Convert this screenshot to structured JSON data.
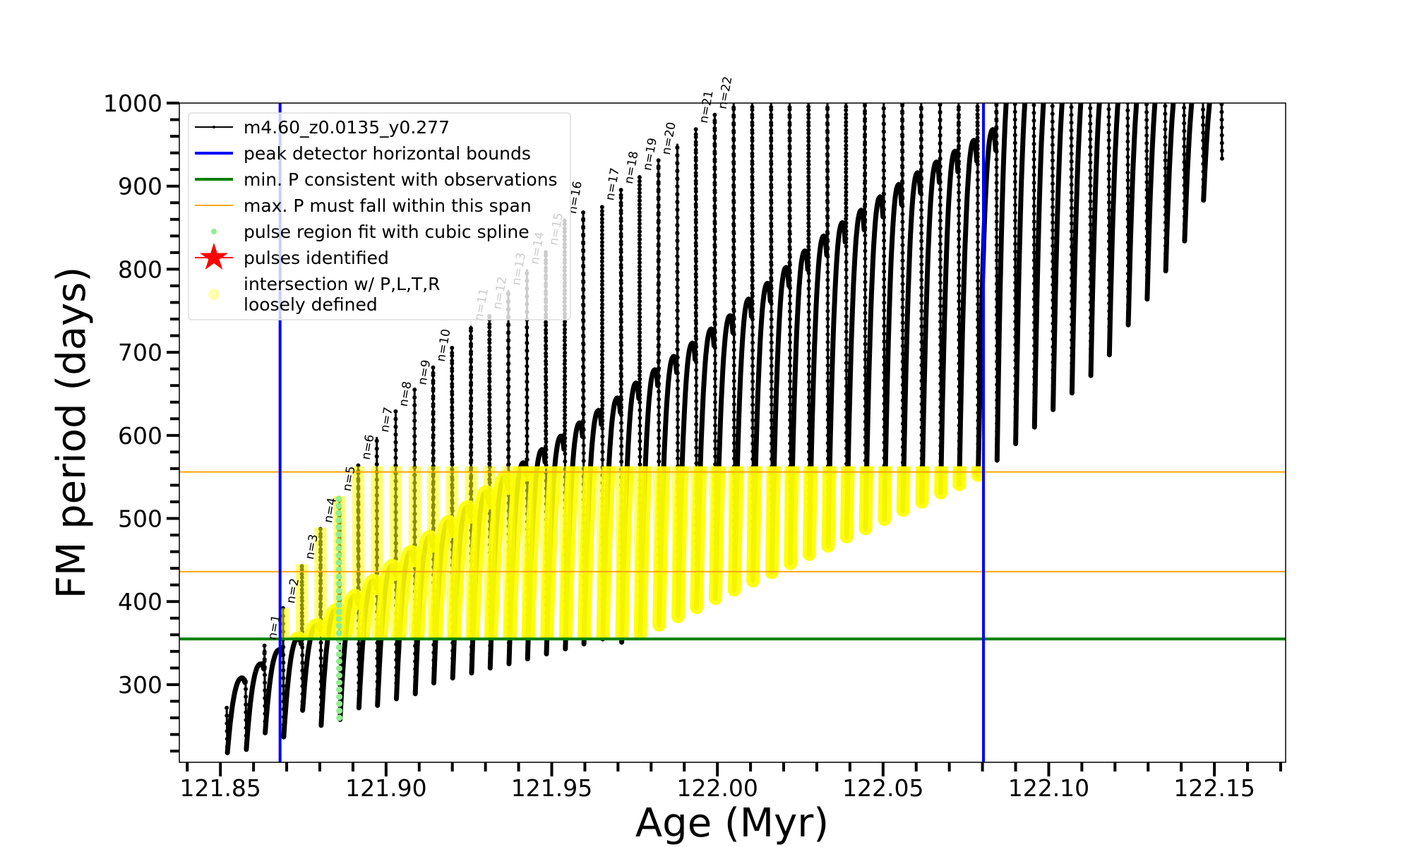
{
  "chart_data": {
    "type": "line",
    "title": "",
    "xlabel": "Age (Myr)",
    "ylabel": "FM period (days)",
    "xlim": [
      121.8376,
      122.1715
    ],
    "ylim": [
      206.5,
      1000
    ],
    "xticks": [
      121.85,
      121.9,
      121.95,
      122.0,
      122.05,
      122.1,
      122.15
    ],
    "xtick_labels": [
      "121.85",
      "121.90",
      "121.95",
      "122.00",
      "122.05",
      "122.10",
      "122.15"
    ],
    "yticks": [
      300,
      400,
      500,
      600,
      700,
      800,
      900,
      1000
    ],
    "ytick_labels": [
      "300",
      "400",
      "500",
      "600",
      "700",
      "800",
      "900",
      "1000"
    ],
    "grid": false,
    "legend_position": "top-left",
    "series": [
      {
        "name": "m4.60_z0.0135_y0.277",
        "color": "#000000",
        "pulse_age": [
          121.8519,
          121.8576,
          121.8633,
          121.8689,
          121.8746,
          121.8802,
          121.8859,
          121.8916,
          121.8972,
          121.9029,
          121.9086,
          121.9142,
          121.9199,
          121.9256,
          121.9312,
          121.9369,
          121.9425,
          121.9482,
          121.9539,
          121.9595,
          121.9652,
          121.9709,
          121.9765,
          121.9822,
          121.9879,
          121.9935,
          121.9992,
          122.0049,
          122.0105,
          122.0162,
          122.0218,
          122.0275,
          122.0332,
          122.0388,
          122.0445,
          122.0502,
          122.0558,
          122.0615,
          122.0672,
          122.0728,
          122.0785,
          122.0842,
          122.0898,
          122.0955,
          122.1011,
          122.1068,
          122.1125,
          122.1181,
          122.1238,
          122.1295,
          122.1351,
          122.1408,
          122.1465,
          122.1521
        ],
        "pulse_max_period": [
          272,
          308,
          348,
          392,
          445,
          489,
          527,
          565,
          598,
          629,
          655,
          683,
          707,
          732,
          746,
          775,
          800,
          823,
          861,
          869,
          877,
          897,
          913,
          932,
          951,
          970,
          987,
          null,
          null,
          null,
          null,
          null,
          null,
          null,
          null,
          null,
          null,
          null,
          null,
          null,
          null,
          null,
          null,
          null,
          null,
          null,
          null,
          null,
          null,
          null,
          null,
          null,
          null,
          null
        ],
        "pulse_min_period": [
          218,
          222,
          242,
          237,
          269,
          251,
          258,
          272,
          275,
          283,
          289,
          302,
          308,
          314,
          320,
          325,
          331,
          337,
          343,
          349,
          355,
          351,
          361,
          372,
          382,
          393,
          404,
          414,
          425,
          435,
          446,
          457,
          467,
          478,
          488,
          499,
          510,
          520,
          531,
          541,
          552,
          570,
          590,
          610,
          631,
          651,
          672,
          697,
          733,
          764,
          798,
          834,
          883,
          932
        ],
        "interpulse_peak_period": [
          308,
          325,
          342,
          356,
          372,
          390,
          407,
          425,
          443,
          460,
          478,
          496,
          514,
          532,
          550,
          567,
          583,
          599,
          615,
          630,
          645,
          663,
          679,
          695,
          711,
          728,
          744,
          764,
          783,
          802,
          822,
          840,
          856,
          871,
          887,
          902,
          916,
          929,
          942,
          955,
          968,
          null,
          null,
          null,
          null,
          null,
          null,
          null,
          null,
          null,
          null,
          null,
          null,
          null
        ]
      }
    ],
    "vlines": [
      {
        "name": "peak detector horizontal bounds",
        "x": [
          121.868,
          122.0803
        ],
        "color": "#0000ff"
      }
    ],
    "hlines": [
      {
        "name": "min. P consistent with observations",
        "y": [
          355
        ],
        "color": "#008000"
      },
      {
        "name": "max. P must fall within this span",
        "y": [
          436,
          556
        ],
        "color": "#ffa500"
      }
    ],
    "spline_points": {
      "name": "pulse region fit with cubic spline",
      "age": 121.8859,
      "period_range": [
        260,
        527
      ],
      "color": "#90ee90"
    },
    "intersection_region": {
      "name": "intersection w/ P,L,T,R\nloosely defined",
      "age_range": [
        121.868,
        122.0803
      ],
      "period_range": [
        355,
        556
      ],
      "color": "#ffff00"
    },
    "pulse_labels": [
      {
        "label": "n=1",
        "age": 121.8633,
        "period": 348
      },
      {
        "label": "n=2",
        "age": 121.8689,
        "period": 392
      },
      {
        "label": "n=3",
        "age": 121.8746,
        "period": 445
      },
      {
        "label": "n=4",
        "age": 121.8802,
        "period": 489
      },
      {
        "label": "n=5",
        "age": 121.8859,
        "period": 527
      },
      {
        "label": "n=6",
        "age": 121.8916,
        "period": 565
      },
      {
        "label": "n=7",
        "age": 121.8972,
        "period": 598
      },
      {
        "label": "n=8",
        "age": 121.9029,
        "period": 629
      },
      {
        "label": "n=9",
        "age": 121.9086,
        "period": 655
      },
      {
        "label": "n=10",
        "age": 121.9142,
        "period": 683
      },
      {
        "label": "n=11",
        "age": 121.9256,
        "period": 732
      },
      {
        "label": "n=12",
        "age": 121.9312,
        "period": 746
      },
      {
        "label": "n=13",
        "age": 121.9369,
        "period": 775
      },
      {
        "label": "n=14",
        "age": 121.9425,
        "period": 800
      },
      {
        "label": "n=15",
        "age": 121.9482,
        "period": 823
      },
      {
        "label": "n=16",
        "age": 121.9539,
        "period": 861
      },
      {
        "label": "n=17",
        "age": 121.9652,
        "period": 877
      },
      {
        "label": "n=18",
        "age": 121.9709,
        "period": 897
      },
      {
        "label": "n=19",
        "age": 121.9765,
        "period": 913
      },
      {
        "label": "n=20",
        "age": 121.9822,
        "period": 932
      },
      {
        "label": "n=21",
        "age": 121.9935,
        "period": 970
      },
      {
        "label": "n=22",
        "age": 121.9992,
        "period": 987
      }
    ],
    "legend": [
      {
        "label": "m4.60_z0.0135_y0.277",
        "marker": "line-dot",
        "color": "#000000"
      },
      {
        "label": "peak detector horizontal bounds",
        "marker": "line",
        "color": "#0000ff"
      },
      {
        "label": "min. P consistent with observations",
        "marker": "line",
        "color": "#008000"
      },
      {
        "label": "max. P must fall within this span",
        "marker": "thin-line",
        "color": "#ffa500"
      },
      {
        "label": "pulse region fit with cubic spline",
        "marker": "dot",
        "color": "#90ee90"
      },
      {
        "label": "pulses identified",
        "marker": "star",
        "color": "#ff0000"
      },
      {
        "label": "intersection w/ P,L,T,R",
        "label2": "loosely defined",
        "marker": "circle",
        "color": "#ffff99"
      }
    ]
  }
}
